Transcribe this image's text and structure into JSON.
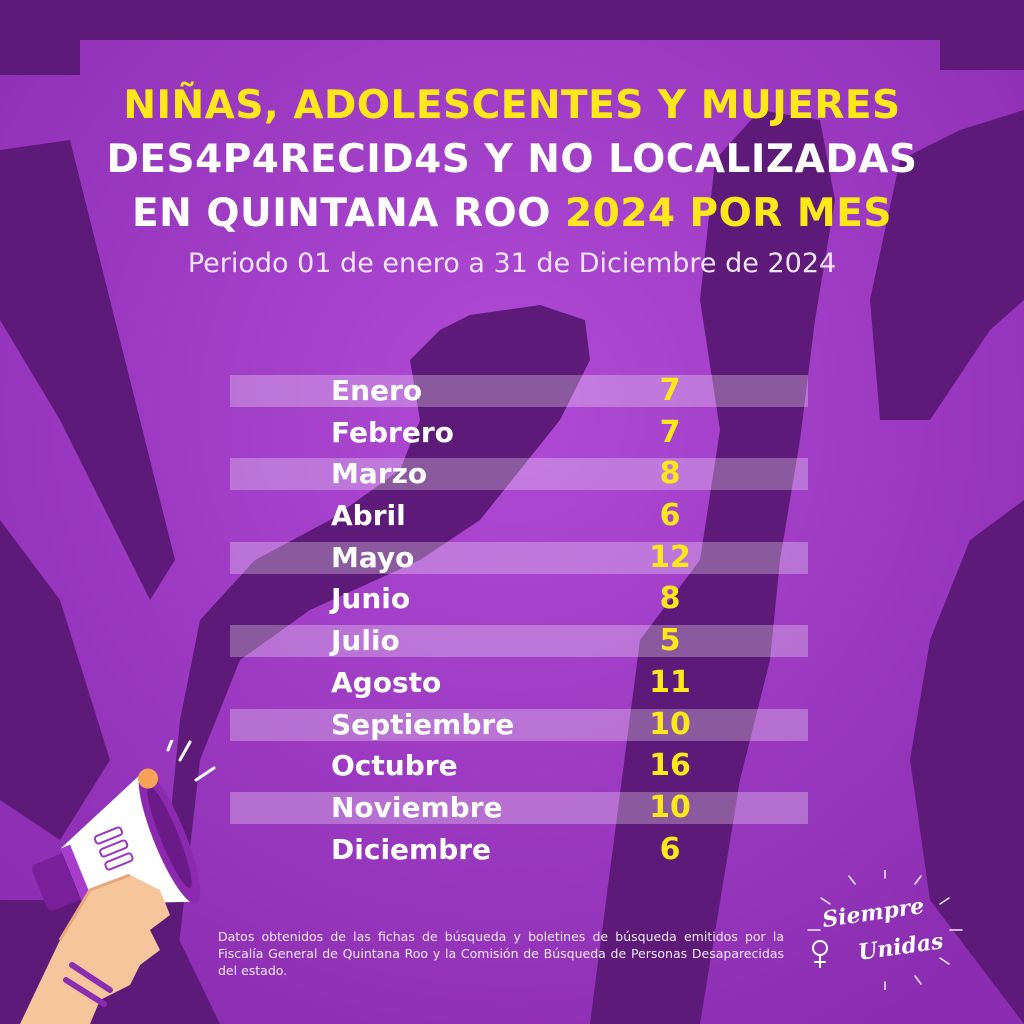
{
  "title": {
    "line1": "NIÑAS, ADOLESCENTES Y MUJERES",
    "line2": "DES4P4RECID4S Y NO LOCALIZADAS",
    "line3_prefix": "EN QUINTANA ROO ",
    "line3_highlight": "2024 POR MES"
  },
  "subtitle": "Periodo 01 de enero a 31 de Diciembre de 2024",
  "chart_data": {
    "type": "table",
    "categories": [
      "Enero",
      "Febrero",
      "Marzo",
      "Abril",
      "Mayo",
      "Junio",
      "Julio",
      "Agosto",
      "Septiembre",
      "Octubre",
      "Noviembre",
      "Diciembre"
    ],
    "values": [
      7,
      7,
      8,
      6,
      12,
      8,
      5,
      11,
      10,
      16,
      10,
      6
    ]
  },
  "footnote": "Datos obtenidos de las fichas de búsqueda y boletines de búsqueda emitidos por la Fiscalía General de Quintana Roo y la Comisión de Búsqueda de Personas Desaparecidas del estado.",
  "logo": {
    "line1": "Siempre",
    "line2": "Unidas"
  },
  "colors": {
    "background": "#9b35c1",
    "silhouette": "#5e1a79",
    "accent_yellow": "#ffe81a",
    "text_white": "#ffffff"
  },
  "icons": {
    "megaphone": "megaphone-hand-icon",
    "logo": "siempre-unidas-logo"
  }
}
